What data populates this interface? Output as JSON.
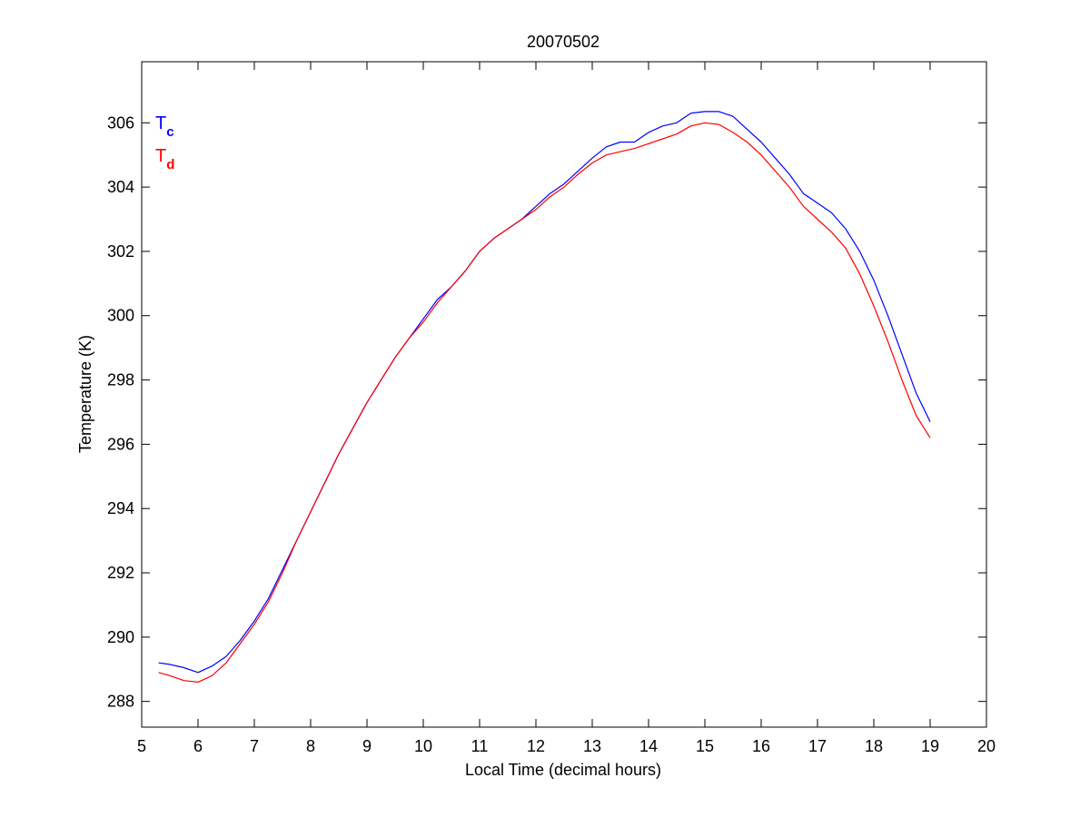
{
  "chart_data": {
    "type": "line",
    "title": "20070502",
    "xlabel": "Local Time (decimal hours)",
    "ylabel": "Temperature (K)",
    "xlim": [
      5,
      20
    ],
    "ylim": [
      287.2,
      307.9
    ],
    "xticks": [
      5,
      6,
      7,
      8,
      9,
      10,
      11,
      12,
      13,
      14,
      15,
      16,
      17,
      18,
      19,
      20
    ],
    "yticks": [
      288,
      290,
      292,
      294,
      296,
      298,
      300,
      302,
      304,
      306
    ],
    "grid": false,
    "legend_position": "top-left",
    "series": [
      {
        "name": "T",
        "name_subscript": "c",
        "color": "#0000ff",
        "x": [
          5.3,
          5.5,
          5.75,
          6.0,
          6.25,
          6.5,
          6.75,
          7.0,
          7.25,
          7.5,
          7.75,
          8.0,
          8.25,
          8.5,
          8.75,
          9.0,
          9.25,
          9.5,
          9.75,
          10.0,
          10.25,
          10.5,
          10.75,
          11.0,
          11.25,
          11.5,
          11.75,
          12.0,
          12.25,
          12.5,
          12.75,
          13.0,
          13.25,
          13.5,
          13.75,
          14.0,
          14.25,
          14.5,
          14.75,
          15.0,
          15.25,
          15.5,
          15.75,
          16.0,
          16.25,
          16.5,
          16.75,
          17.0,
          17.25,
          17.5,
          17.75,
          18.0,
          18.25,
          18.5,
          18.75,
          19.0
        ],
        "y": [
          289.2,
          289.15,
          289.05,
          288.9,
          289.1,
          289.4,
          289.9,
          290.5,
          291.2,
          292.1,
          293.0,
          293.9,
          294.8,
          295.7,
          296.5,
          297.3,
          298.0,
          298.7,
          299.3,
          299.9,
          300.5,
          300.9,
          301.4,
          302.0,
          302.4,
          302.7,
          303.0,
          303.4,
          303.8,
          304.1,
          304.5,
          304.9,
          305.25,
          305.4,
          305.4,
          305.7,
          305.9,
          306.0,
          306.3,
          306.35,
          306.35,
          306.2,
          305.8,
          305.4,
          304.9,
          304.4,
          303.8,
          303.5,
          303.2,
          302.7,
          302.0,
          301.1,
          300.0,
          298.8,
          297.6,
          296.7
        ]
      },
      {
        "name": "T",
        "name_subscript": "d",
        "color": "#ff0000",
        "x": [
          5.3,
          5.5,
          5.75,
          6.0,
          6.25,
          6.5,
          6.75,
          7.0,
          7.25,
          7.5,
          7.75,
          8.0,
          8.25,
          8.5,
          8.75,
          9.0,
          9.25,
          9.5,
          9.75,
          10.0,
          10.25,
          10.5,
          10.75,
          11.0,
          11.25,
          11.5,
          11.75,
          12.0,
          12.25,
          12.5,
          12.75,
          13.0,
          13.25,
          13.5,
          13.75,
          14.0,
          14.25,
          14.5,
          14.75,
          15.0,
          15.25,
          15.5,
          15.75,
          16.0,
          16.25,
          16.5,
          16.75,
          17.0,
          17.25,
          17.5,
          17.75,
          18.0,
          18.25,
          18.5,
          18.75,
          19.0
        ],
        "y": [
          288.9,
          288.8,
          288.65,
          288.6,
          288.8,
          289.2,
          289.8,
          290.4,
          291.1,
          292.0,
          293.0,
          293.9,
          294.8,
          295.7,
          296.5,
          297.3,
          298.0,
          298.7,
          299.3,
          299.8,
          300.4,
          300.9,
          301.4,
          302.0,
          302.4,
          302.7,
          303.0,
          303.3,
          303.7,
          304.0,
          304.4,
          304.75,
          305.0,
          305.1,
          305.2,
          305.35,
          305.5,
          305.65,
          305.9,
          306.0,
          305.95,
          305.7,
          305.4,
          305.0,
          304.5,
          304.0,
          303.4,
          303.0,
          302.6,
          302.1,
          301.3,
          300.3,
          299.2,
          298.0,
          296.9,
          296.2
        ]
      }
    ]
  }
}
